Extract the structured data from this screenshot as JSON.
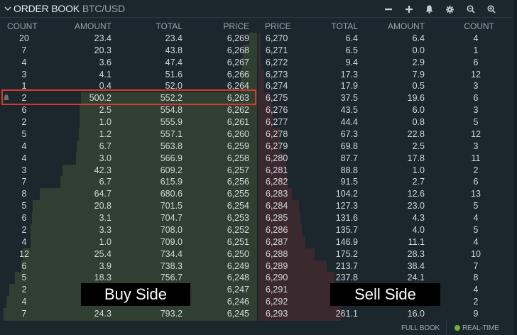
{
  "header": {
    "title": "ORDER BOOK",
    "pair": "BTC/USD",
    "tools": [
      {
        "name": "decrease-precision-button",
        "icon": "minus-icon"
      },
      {
        "name": "increase-precision-button",
        "icon": "plus-icon"
      },
      {
        "name": "alerts-button",
        "icon": "bell-icon"
      },
      {
        "name": "settings-button",
        "icon": "gear-icon"
      },
      {
        "name": "zoom-out-button",
        "icon": "zoom-out-icon"
      },
      {
        "name": "zoom-in-button",
        "icon": "zoom-in-icon"
      }
    ]
  },
  "bids": {
    "columns": {
      "count": "COUNT",
      "amount": "AMOUNT",
      "total": "TOTAL",
      "price": "PRICE"
    },
    "rows": [
      {
        "count": "20",
        "amount": "23.4",
        "total": "23.4",
        "price": "6,269"
      },
      {
        "count": "7",
        "amount": "20.3",
        "total": "43.8",
        "price": "6,268"
      },
      {
        "count": "4",
        "amount": "3.6",
        "total": "47.4",
        "price": "6,267"
      },
      {
        "count": "3",
        "amount": "4.1",
        "total": "51.6",
        "price": "6,266"
      },
      {
        "count": "1",
        "amount": "0.4",
        "total": "52.0",
        "price": "6,264"
      },
      {
        "count": "2",
        "amount": "500.2",
        "total": "552.2",
        "price": "6,263"
      },
      {
        "count": "6",
        "amount": "2.5",
        "total": "554.8",
        "price": "6,262"
      },
      {
        "count": "2",
        "amount": "1.0",
        "total": "555.9",
        "price": "6,261"
      },
      {
        "count": "5",
        "amount": "1.2",
        "total": "557.1",
        "price": "6,260"
      },
      {
        "count": "4",
        "amount": "6.7",
        "total": "563.8",
        "price": "6,259"
      },
      {
        "count": "4",
        "amount": "3.0",
        "total": "566.9",
        "price": "6,258"
      },
      {
        "count": "3",
        "amount": "42.3",
        "total": "609.2",
        "price": "6,257"
      },
      {
        "count": "7",
        "amount": "6.7",
        "total": "615.9",
        "price": "6,256"
      },
      {
        "count": "8",
        "amount": "64.7",
        "total": "680.6",
        "price": "6,255"
      },
      {
        "count": "5",
        "amount": "20.8",
        "total": "701.5",
        "price": "6,254"
      },
      {
        "count": "6",
        "amount": "3.1",
        "total": "704.7",
        "price": "6,253"
      },
      {
        "count": "2",
        "amount": "3.3",
        "total": "708.0",
        "price": "6,252"
      },
      {
        "count": "4",
        "amount": "1.0",
        "total": "709.0",
        "price": "6,251"
      },
      {
        "count": "12",
        "amount": "25.4",
        "total": "734.4",
        "price": "6,250"
      },
      {
        "count": "6",
        "amount": "3.9",
        "total": "738.3",
        "price": "6,249"
      },
      {
        "count": "5",
        "amount": "18.3",
        "total": "756.7",
        "price": "6,248"
      },
      {
        "count": "2",
        "amount": "",
        "total": "",
        "price": "6,247"
      },
      {
        "count": "4",
        "amount": "",
        "total": "",
        "price": "6,246"
      },
      {
        "count": "7",
        "amount": "24.3",
        "total": "793.2",
        "price": "6,245"
      }
    ],
    "depth": [
      23.4,
      43.8,
      47.4,
      51.6,
      52.0,
      552.2,
      554.8,
      555.9,
      557.1,
      563.8,
      566.9,
      609.2,
      615.9,
      680.6,
      701.5,
      704.7,
      708.0,
      709.0,
      734.4,
      738.3,
      756.7,
      775,
      785,
      793.2
    ]
  },
  "asks": {
    "columns": {
      "price": "PRICE",
      "total": "TOTAL",
      "amount": "AMOUNT",
      "count": "COUNT"
    },
    "rows": [
      {
        "price": "6,270",
        "total": "6.4",
        "amount": "6.4",
        "count": "4"
      },
      {
        "price": "6,271",
        "total": "6.5",
        "amount": "0.0",
        "count": "1"
      },
      {
        "price": "6,272",
        "total": "9.4",
        "amount": "2.9",
        "count": "6"
      },
      {
        "price": "6,273",
        "total": "17.3",
        "amount": "7.9",
        "count": "12"
      },
      {
        "price": "6,274",
        "total": "17.9",
        "amount": "0.5",
        "count": "3"
      },
      {
        "price": "6,275",
        "total": "37.5",
        "amount": "19.6",
        "count": "6"
      },
      {
        "price": "6,276",
        "total": "43.5",
        "amount": "6.0",
        "count": "3"
      },
      {
        "price": "6,277",
        "total": "44.4",
        "amount": "0.8",
        "count": "5"
      },
      {
        "price": "6,278",
        "total": "67.3",
        "amount": "22.8",
        "count": "12"
      },
      {
        "price": "6,279",
        "total": "69.8",
        "amount": "2.5",
        "count": "3"
      },
      {
        "price": "6,280",
        "total": "87.7",
        "amount": "17.8",
        "count": "11"
      },
      {
        "price": "6,281",
        "total": "88.8",
        "amount": "1.0",
        "count": "2"
      },
      {
        "price": "6,282",
        "total": "91.5",
        "amount": "2.7",
        "count": "6"
      },
      {
        "price": "6,283",
        "total": "104.2",
        "amount": "12.6",
        "count": "13"
      },
      {
        "price": "6,284",
        "total": "127.3",
        "amount": "23.0",
        "count": "5"
      },
      {
        "price": "6,285",
        "total": "131.6",
        "amount": "4.3",
        "count": "4"
      },
      {
        "price": "6,286",
        "total": "135.7",
        "amount": "4.0",
        "count": "5"
      },
      {
        "price": "6,287",
        "total": "146.9",
        "amount": "11.1",
        "count": "4"
      },
      {
        "price": "6,288",
        "total": "175.2",
        "amount": "28.3",
        "count": "10"
      },
      {
        "price": "6,289",
        "total": "213.7",
        "amount": "38.4",
        "count": "7"
      },
      {
        "price": "6,290",
        "total": "237.8",
        "amount": "24.1",
        "count": "8"
      },
      {
        "price": "6,291",
        "total": "",
        "amount": "",
        "count": "4"
      },
      {
        "price": "6,292",
        "total": "",
        "amount": "",
        "count": "2"
      },
      {
        "price": "6,293",
        "total": "261.1",
        "amount": "16.0",
        "count": "9"
      }
    ],
    "depth": [
      6.4,
      6.5,
      9.4,
      17.3,
      17.9,
      37.5,
      43.5,
      44.4,
      67.3,
      69.8,
      87.7,
      88.8,
      91.5,
      104.2,
      127.3,
      131.6,
      135.7,
      146.9,
      175.2,
      213.7,
      237.8,
      245,
      253,
      261.1
    ]
  },
  "annotations": {
    "buy_label": "Buy Side",
    "sell_label": "Sell Side",
    "highlighted_row_price": "6,263"
  },
  "footer": {
    "full_book": "FULL BOOK",
    "realtime": "REAL-TIME"
  },
  "colors": {
    "background": "#1b262d",
    "buy_bar": "#2f3f31",
    "sell_bar": "#3a2a30",
    "highlight": "#d33a30",
    "realtime_dot": "#76b041"
  }
}
